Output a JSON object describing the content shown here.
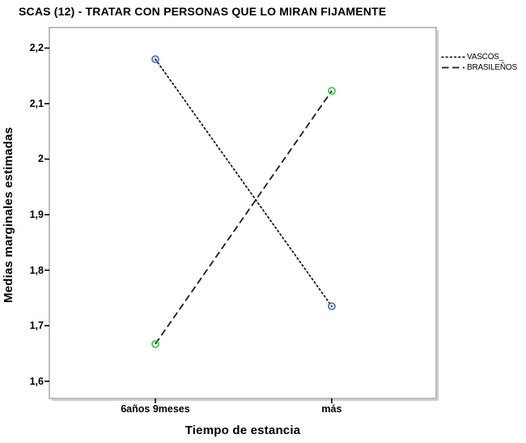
{
  "chart_data": {
    "type": "line",
    "title": "SCAS (12) - TRATAR CON PERSONAS QUE LO MIRAN FIJAMENTE",
    "xlabel": "Tiempo de estancia",
    "ylabel": "Medias marginales estimadas",
    "categories": [
      "6años 9meses",
      "más"
    ],
    "series": [
      {
        "name": "VASCOS_",
        "values": [
          2.18,
          1.735
        ],
        "line_style": "dotted",
        "line_color": "#1a1a1a",
        "marker_color": "#4a68c4",
        "marker": "open-circle"
      },
      {
        "name": "BRASILEÑOS",
        "values": [
          1.667,
          2.123
        ],
        "line_style": "dashed",
        "line_color": "#1a1a1a",
        "marker_color": "#3dc24d",
        "marker": "open-circle"
      }
    ],
    "y_ticks": [
      "2,2",
      "2,1",
      "2",
      "1,9",
      "1,8",
      "1,7",
      "1,6"
    ],
    "y_tick_values": [
      2.2,
      2.1,
      2.0,
      1.9,
      1.8,
      1.7,
      1.6
    ],
    "ylim": [
      1.569,
      2.237
    ],
    "grid": false,
    "legend_position": "outside-top-right",
    "frame_color": "#999999",
    "shadow_color": "#d0d0d0",
    "tick_color": "#000000",
    "background": "#ffffff"
  }
}
